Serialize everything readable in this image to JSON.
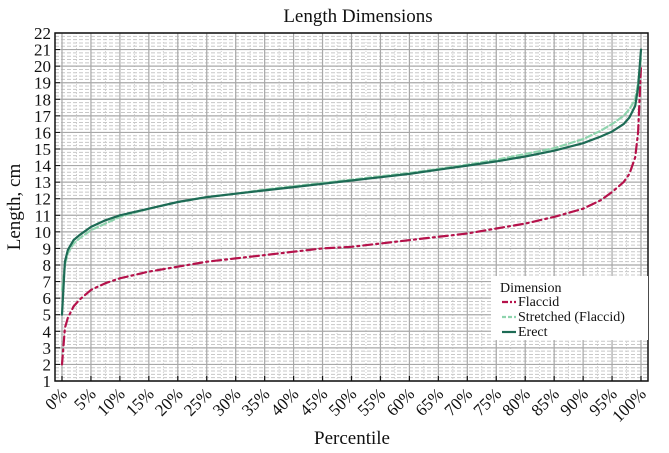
{
  "chart_data": {
    "type": "line",
    "title": "Length Dimensions",
    "xlabel": "Percentile",
    "ylabel": "Length, cm",
    "xlim": [
      0,
      100
    ],
    "ylim": [
      1,
      22
    ],
    "x_ticks": [
      "0%",
      "5%",
      "10%",
      "15%",
      "20%",
      "25%",
      "30%",
      "35%",
      "40%",
      "45%",
      "50%",
      "55%",
      "60%",
      "65%",
      "70%",
      "75%",
      "80%",
      "85%",
      "90%",
      "95%",
      "100%"
    ],
    "y_ticks": [
      1,
      2,
      3,
      4,
      5,
      6,
      7,
      8,
      9,
      10,
      11,
      12,
      13,
      14,
      15,
      16,
      17,
      18,
      19,
      20,
      21,
      22
    ],
    "grid": {
      "major": true,
      "minor": true,
      "minor_step_y": 0.2
    },
    "legend": {
      "title": "Dimension",
      "position": "lower right"
    },
    "x": [
      0,
      0.5,
      1,
      2,
      3,
      5,
      7.5,
      10,
      15,
      20,
      25,
      30,
      35,
      40,
      45,
      50,
      55,
      60,
      65,
      70,
      75,
      80,
      85,
      90,
      93,
      95,
      97,
      98,
      99,
      99.5,
      100
    ],
    "series": [
      {
        "name": "Flaccid",
        "color": "#b5124b",
        "style": "dashdot",
        "values": [
          2.0,
          4.2,
          4.8,
          5.5,
          5.9,
          6.5,
          6.9,
          7.2,
          7.6,
          7.9,
          8.2,
          8.4,
          8.6,
          8.8,
          9.0,
          9.1,
          9.3,
          9.5,
          9.7,
          9.9,
          10.2,
          10.5,
          10.9,
          11.4,
          11.9,
          12.4,
          13.0,
          13.5,
          14.5,
          16.0,
          20.0
        ]
      },
      {
        "name": "Stretched (Flaccid)",
        "color": "#8fd4ae",
        "style": "dashed",
        "values": [
          6.5,
          8.0,
          8.7,
          9.3,
          9.6,
          10.1,
          10.5,
          10.9,
          11.4,
          11.8,
          12.1,
          12.3,
          12.55,
          12.75,
          12.95,
          13.15,
          13.35,
          13.55,
          13.8,
          14.05,
          14.35,
          14.7,
          15.05,
          15.6,
          16.1,
          16.5,
          17.0,
          17.4,
          18.0,
          19.0,
          20.5
        ]
      },
      {
        "name": "Erect",
        "color": "#1d6b55",
        "style": "solid",
        "values": [
          5.0,
          8.2,
          8.9,
          9.5,
          9.8,
          10.3,
          10.7,
          11.0,
          11.4,
          11.8,
          12.1,
          12.3,
          12.5,
          12.7,
          12.9,
          13.1,
          13.3,
          13.5,
          13.75,
          14.0,
          14.25,
          14.55,
          14.9,
          15.35,
          15.75,
          16.05,
          16.5,
          16.9,
          17.6,
          18.7,
          21.0
        ]
      }
    ]
  },
  "colors": {
    "background": "#ffffff",
    "plot_background": "#ffffff",
    "major_grid": "#a8a8a8",
    "minor_grid": "#c8c8c8",
    "axis": "#111111"
  }
}
